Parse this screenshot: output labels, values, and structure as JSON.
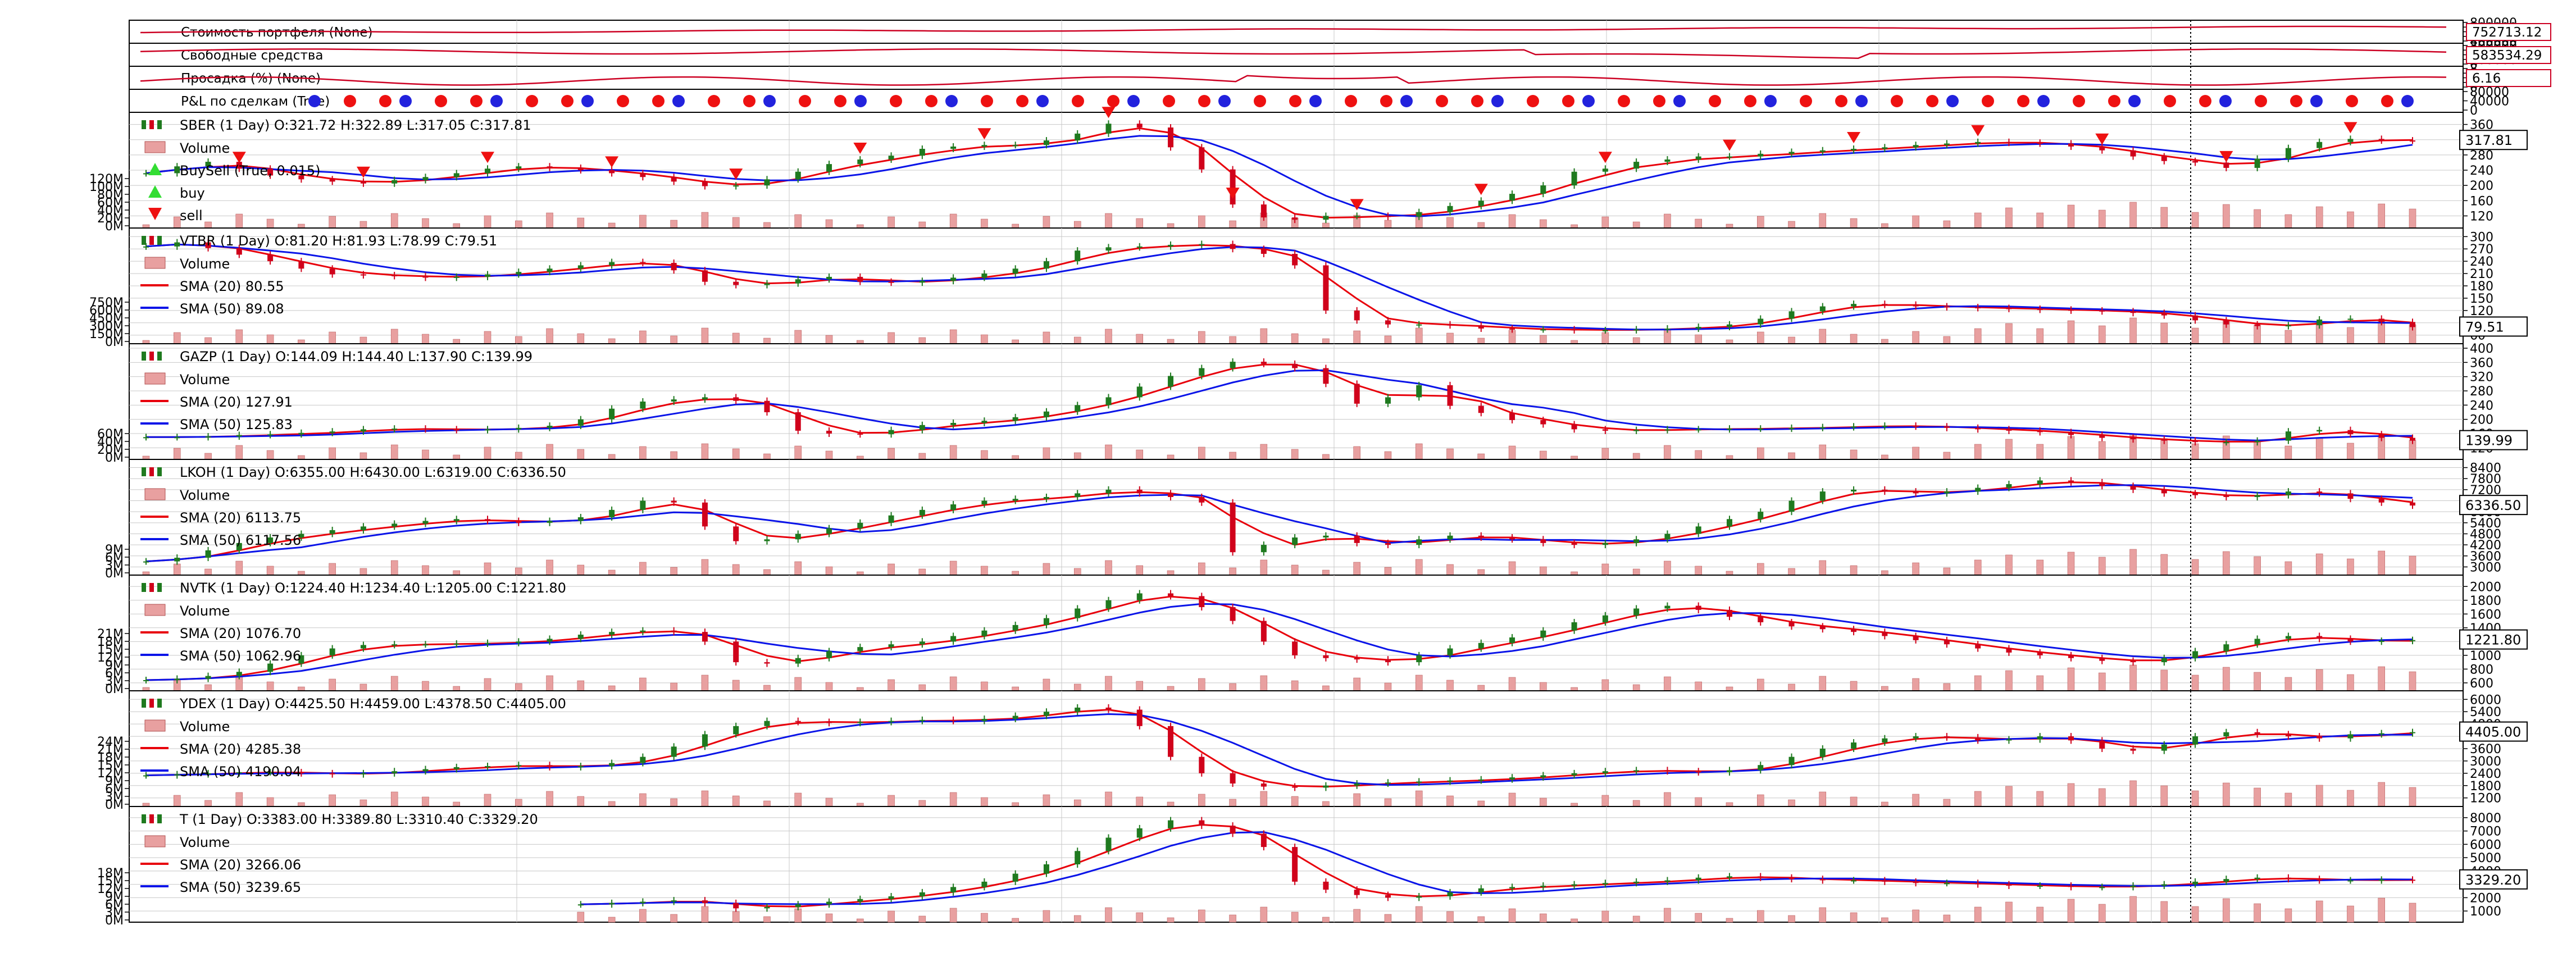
{
  "colors": {
    "up": "#1f7a1f",
    "down": "#d0021b",
    "sma20": "#e8000b",
    "sma50": "#0a14e8",
    "volume": "#e8a0a0",
    "grid": "#c8c8c8",
    "buy_marker": "#33dd33",
    "sell_marker": "#ee1111",
    "pnl_pos": "#2222dd",
    "pnl_neg": "#ee1111",
    "observer_line": "#cc0022"
  },
  "observers": [
    {
      "label": "Стоимость портфеля (None)",
      "value_label": "752713.12",
      "y_ticks": [
        "800000",
        "700000",
        "600000",
        "500000",
        "400000"
      ]
    },
    {
      "label": "Свободные средства",
      "value_label": "583534.29",
      "y_ticks": [
        "800000",
        "600000",
        "400000",
        "200000",
        "0"
      ]
    },
    {
      "label": "Просадка (%) (None)",
      "value_label": "6.16",
      "y_ticks": [
        "8",
        "6",
        "4",
        "2",
        "0"
      ]
    },
    {
      "label": "P&L по сделкам (True)",
      "value_label": "",
      "y_ticks": [
        "80000",
        "40000",
        "0"
      ]
    }
  ],
  "chart_data": [
    {
      "type": "line",
      "title": "SBER (1 Day) O:321.72 H:322.89 L:317.05 C:317.81",
      "legend": [
        "Volume",
        "BuySell (True, 0.015)",
        "buy",
        "sell"
      ],
      "last_price_label": "317.81",
      "y_ticks": [
        "360",
        "320",
        "280",
        "240",
        "200",
        "160",
        "120"
      ],
      "vol_ticks": [
        "120M",
        "100M",
        "80M",
        "60M",
        "40M",
        "20M",
        "0M"
      ],
      "ylim": [
        100,
        380
      ],
      "close": [
        232,
        250,
        262,
        244,
        226,
        216,
        210,
        205,
        214,
        222,
        232,
        244,
        250,
        246,
        240,
        232,
        222,
        210,
        198,
        200,
        216,
        236,
        256,
        268,
        278,
        296,
        302,
        306,
        306,
        318,
        336,
        362,
        352,
        300,
        242,
        150,
        116,
        110,
        120,
        120,
        118,
        130,
        146,
        160,
        178,
        200,
        236,
        244,
        262,
        268,
        276,
        276,
        283,
        288,
        292,
        296,
        300,
        306,
        310,
        314,
        312,
        310,
        302,
        292,
        276,
        264,
        260,
        246,
        270,
        298,
        314,
        322,
        318,
        317.81
      ]
    },
    {
      "type": "line",
      "title": "VTBR (1 Day) O:81.20 H:81.93 L:78.99 C:79.51",
      "legend": [
        "Volume",
        "SMA (20) 80.55",
        "SMA (50) 89.08"
      ],
      "last_price_label": "79.51",
      "y_ticks": [
        "300",
        "270",
        "240",
        "210",
        "180",
        "150",
        "120",
        "90",
        "60"
      ],
      "vol_ticks": [
        "750M",
        "600M",
        "450M",
        "300M",
        "150M",
        "0M"
      ],
      "ylim": [
        50,
        310
      ],
      "close": [
        276,
        286,
        272,
        256,
        240,
        222,
        208,
        206,
        204,
        200,
        202,
        208,
        214,
        222,
        230,
        238,
        236,
        218,
        190,
        182,
        186,
        196,
        202,
        190,
        188,
        192,
        200,
        210,
        222,
        240,
        266,
        274,
        276,
        280,
        282,
        270,
        258,
        230,
        120,
        96,
        86,
        86,
        84,
        76,
        74,
        74,
        72,
        72,
        74,
        76,
        80,
        86,
        100,
        118,
        130,
        136,
        134,
        130,
        128,
        126,
        124,
        122,
        120,
        118,
        114,
        108,
        96,
        86,
        82,
        84,
        98,
        100,
        92,
        79.51
      ]
    },
    {
      "type": "line",
      "title": "GAZP (1 Day) O:144.09 H:144.40 L:137.90 C:139.99",
      "legend": [
        "Volume",
        "SMA (20) 127.91",
        "SMA (50) 125.83"
      ],
      "last_price_label": "139.99",
      "y_ticks": [
        "400",
        "360",
        "320",
        "280",
        "240",
        "200",
        "160",
        "120"
      ],
      "vol_ticks": [
        "60M",
        "40M",
        "20M",
        "0M"
      ],
      "ylim": [
        100,
        400
      ],
      "close": [
        150,
        150,
        152,
        156,
        158,
        162,
        166,
        172,
        174,
        172,
        170,
        172,
        176,
        182,
        200,
        230,
        250,
        256,
        262,
        252,
        220,
        168,
        160,
        158,
        170,
        184,
        190,
        196,
        206,
        222,
        240,
        262,
        292,
        322,
        344,
        362,
        356,
        344,
        300,
        244,
        262,
        296,
        238,
        218,
        198,
        186,
        172,
        168,
        170,
        172,
        172,
        174,
        174,
        176,
        178,
        180,
        182,
        180,
        176,
        172,
        168,
        164,
        156,
        148,
        144,
        140,
        136,
        136,
        140,
        166,
        170,
        158,
        148,
        139.99
      ]
    },
    {
      "type": "line",
      "title": "LKOH (1 Day) O:6355.00 H:6430.00 L:6319.00 C:6336.50",
      "legend": [
        "Volume",
        "SMA (20) 6113.75",
        "SMA (50) 6117.56"
      ],
      "last_price_label": "6336.50",
      "y_ticks": [
        "8400",
        "7800",
        "7200",
        "6600",
        "6000",
        "5400",
        "4800",
        "4200",
        "3600",
        "3000"
      ],
      "vol_ticks": [
        "9M",
        "6M",
        "3M",
        "0M"
      ],
      "ylim": [
        2800,
        8600
      ],
      "close": [
        3300,
        3500,
        3900,
        4300,
        4600,
        4800,
        5000,
        5200,
        5350,
        5500,
        5600,
        5500,
        5400,
        5500,
        5700,
        6100,
        6600,
        6500,
        5200,
        4400,
        4500,
        4800,
        5100,
        5400,
        5800,
        6100,
        6400,
        6600,
        6700,
        6800,
        7000,
        7200,
        7000,
        6800,
        6500,
        3800,
        4200,
        4600,
        4700,
        4300,
        4200,
        4500,
        4700,
        4600,
        4500,
        4300,
        4200,
        4300,
        4500,
        4800,
        5200,
        5600,
        6000,
        6600,
        7100,
        7200,
        7100,
        7000,
        7100,
        7300,
        7500,
        7700,
        7600,
        7400,
        7200,
        7000,
        6900,
        6800,
        6900,
        7100,
        7000,
        6700,
        6500,
        6336.5
      ]
    },
    {
      "type": "line",
      "title": "NVTK (1 Day) O:1224.40 H:1234.40 L:1205.00 C:1221.80",
      "legend": [
        "Volume",
        "SMA (20) 1076.70",
        "SMA (50) 1062.96"
      ],
      "last_price_label": "1221.80",
      "y_ticks": [
        "2000",
        "1800",
        "1600",
        "1400",
        "1200",
        "1000",
        "800",
        "600"
      ],
      "vol_ticks": [
        "21M",
        "18M",
        "15M",
        "12M",
        "9M",
        "6M",
        "3M",
        "0M"
      ],
      "ylim": [
        550,
        2100
      ],
      "close": [
        640,
        660,
        700,
        760,
        880,
        1000,
        1100,
        1150,
        1160,
        1160,
        1170,
        1180,
        1200,
        1240,
        1300,
        1340,
        1360,
        1340,
        1200,
        900,
        880,
        960,
        1060,
        1120,
        1160,
        1200,
        1280,
        1360,
        1440,
        1540,
        1680,
        1800,
        1900,
        1860,
        1700,
        1500,
        1200,
        1000,
        960,
        940,
        900,
        1000,
        1100,
        1180,
        1260,
        1360,
        1480,
        1580,
        1680,
        1720,
        1660,
        1560,
        1480,
        1420,
        1380,
        1340,
        1280,
        1220,
        1160,
        1100,
        1040,
        1000,
        960,
        920,
        900,
        960,
        1060,
        1160,
        1240,
        1280,
        1240,
        1200,
        1210,
        1221.8
      ]
    },
    {
      "type": "line",
      "title": "YDEX (1 Day) O:4425.50 H:4459.00 L:4378.50 C:4405.00",
      "legend": [
        "Volume",
        "SMA (20) 4285.38",
        "SMA (50) 4190.04"
      ],
      "last_price_label": "4405.00",
      "y_ticks": [
        "6000",
        "5400",
        "4800",
        "4200",
        "3600",
        "3000",
        "2400",
        "1800",
        "1200"
      ],
      "vol_ticks": [
        "24M",
        "21M",
        "18M",
        "15M",
        "12M",
        "9M",
        "6M",
        "3M",
        "0M"
      ],
      "ylim": [
        1000,
        6200
      ],
      "close": [
        2300,
        2350,
        2400,
        2450,
        2450,
        2400,
        2350,
        2400,
        2500,
        2600,
        2700,
        2750,
        2800,
        2700,
        2750,
        2900,
        3200,
        3700,
        4300,
        4700,
        4950,
        4900,
        4850,
        4900,
        4950,
        5000,
        4950,
        5050,
        5200,
        5400,
        5600,
        5500,
        4700,
        3200,
        2400,
        1900,
        1750,
        1700,
        1800,
        1900,
        1950,
        2000,
        2050,
        2100,
        2200,
        2300,
        2400,
        2500,
        2550,
        2500,
        2450,
        2550,
        2800,
        3200,
        3600,
        3900,
        4100,
        4200,
        4150,
        4000,
        4050,
        4200,
        4000,
        3600,
        3500,
        3800,
        4200,
        4400,
        4300,
        4200,
        4100,
        4300,
        4350,
        4405
      ]
    },
    {
      "type": "line",
      "title": "T (1 Day) O:3383.00 H:3389.80 L:3310.40 C:3329.20",
      "legend": [
        "Volume",
        "SMA (20) 3266.06",
        "SMA (50) 3239.65"
      ],
      "last_price_label": "3329.20",
      "y_ticks": [
        "8000",
        "7000",
        "6000",
        "5000",
        "4000",
        "3000",
        "2000",
        "1000"
      ],
      "vol_ticks": [
        "18M",
        "15M",
        "12M",
        "9M",
        "6M",
        "3M",
        "0M"
      ],
      "ylim": [
        500,
        8500
      ],
      "close": [
        null,
        null,
        null,
        null,
        null,
        null,
        null,
        null,
        null,
        null,
        null,
        null,
        null,
        null,
        1500,
        1600,
        1700,
        1800,
        1600,
        1200,
        1300,
        1500,
        1700,
        1900,
        2100,
        2400,
        2800,
        3200,
        3800,
        4500,
        5500,
        6500,
        7200,
        7800,
        7400,
        6800,
        5800,
        3200,
        2600,
        2200,
        2000,
        2100,
        2400,
        2700,
        2800,
        2900,
        3000,
        3100,
        3200,
        3300,
        3500,
        3600,
        3500,
        3400,
        3300,
        3300,
        3200,
        3100,
        3100,
        3000,
        2900,
        2900,
        2800,
        2800,
        2900,
        3000,
        3200,
        3400,
        3500,
        3400,
        3300,
        3300,
        3350,
        3329.2
      ]
    }
  ]
}
